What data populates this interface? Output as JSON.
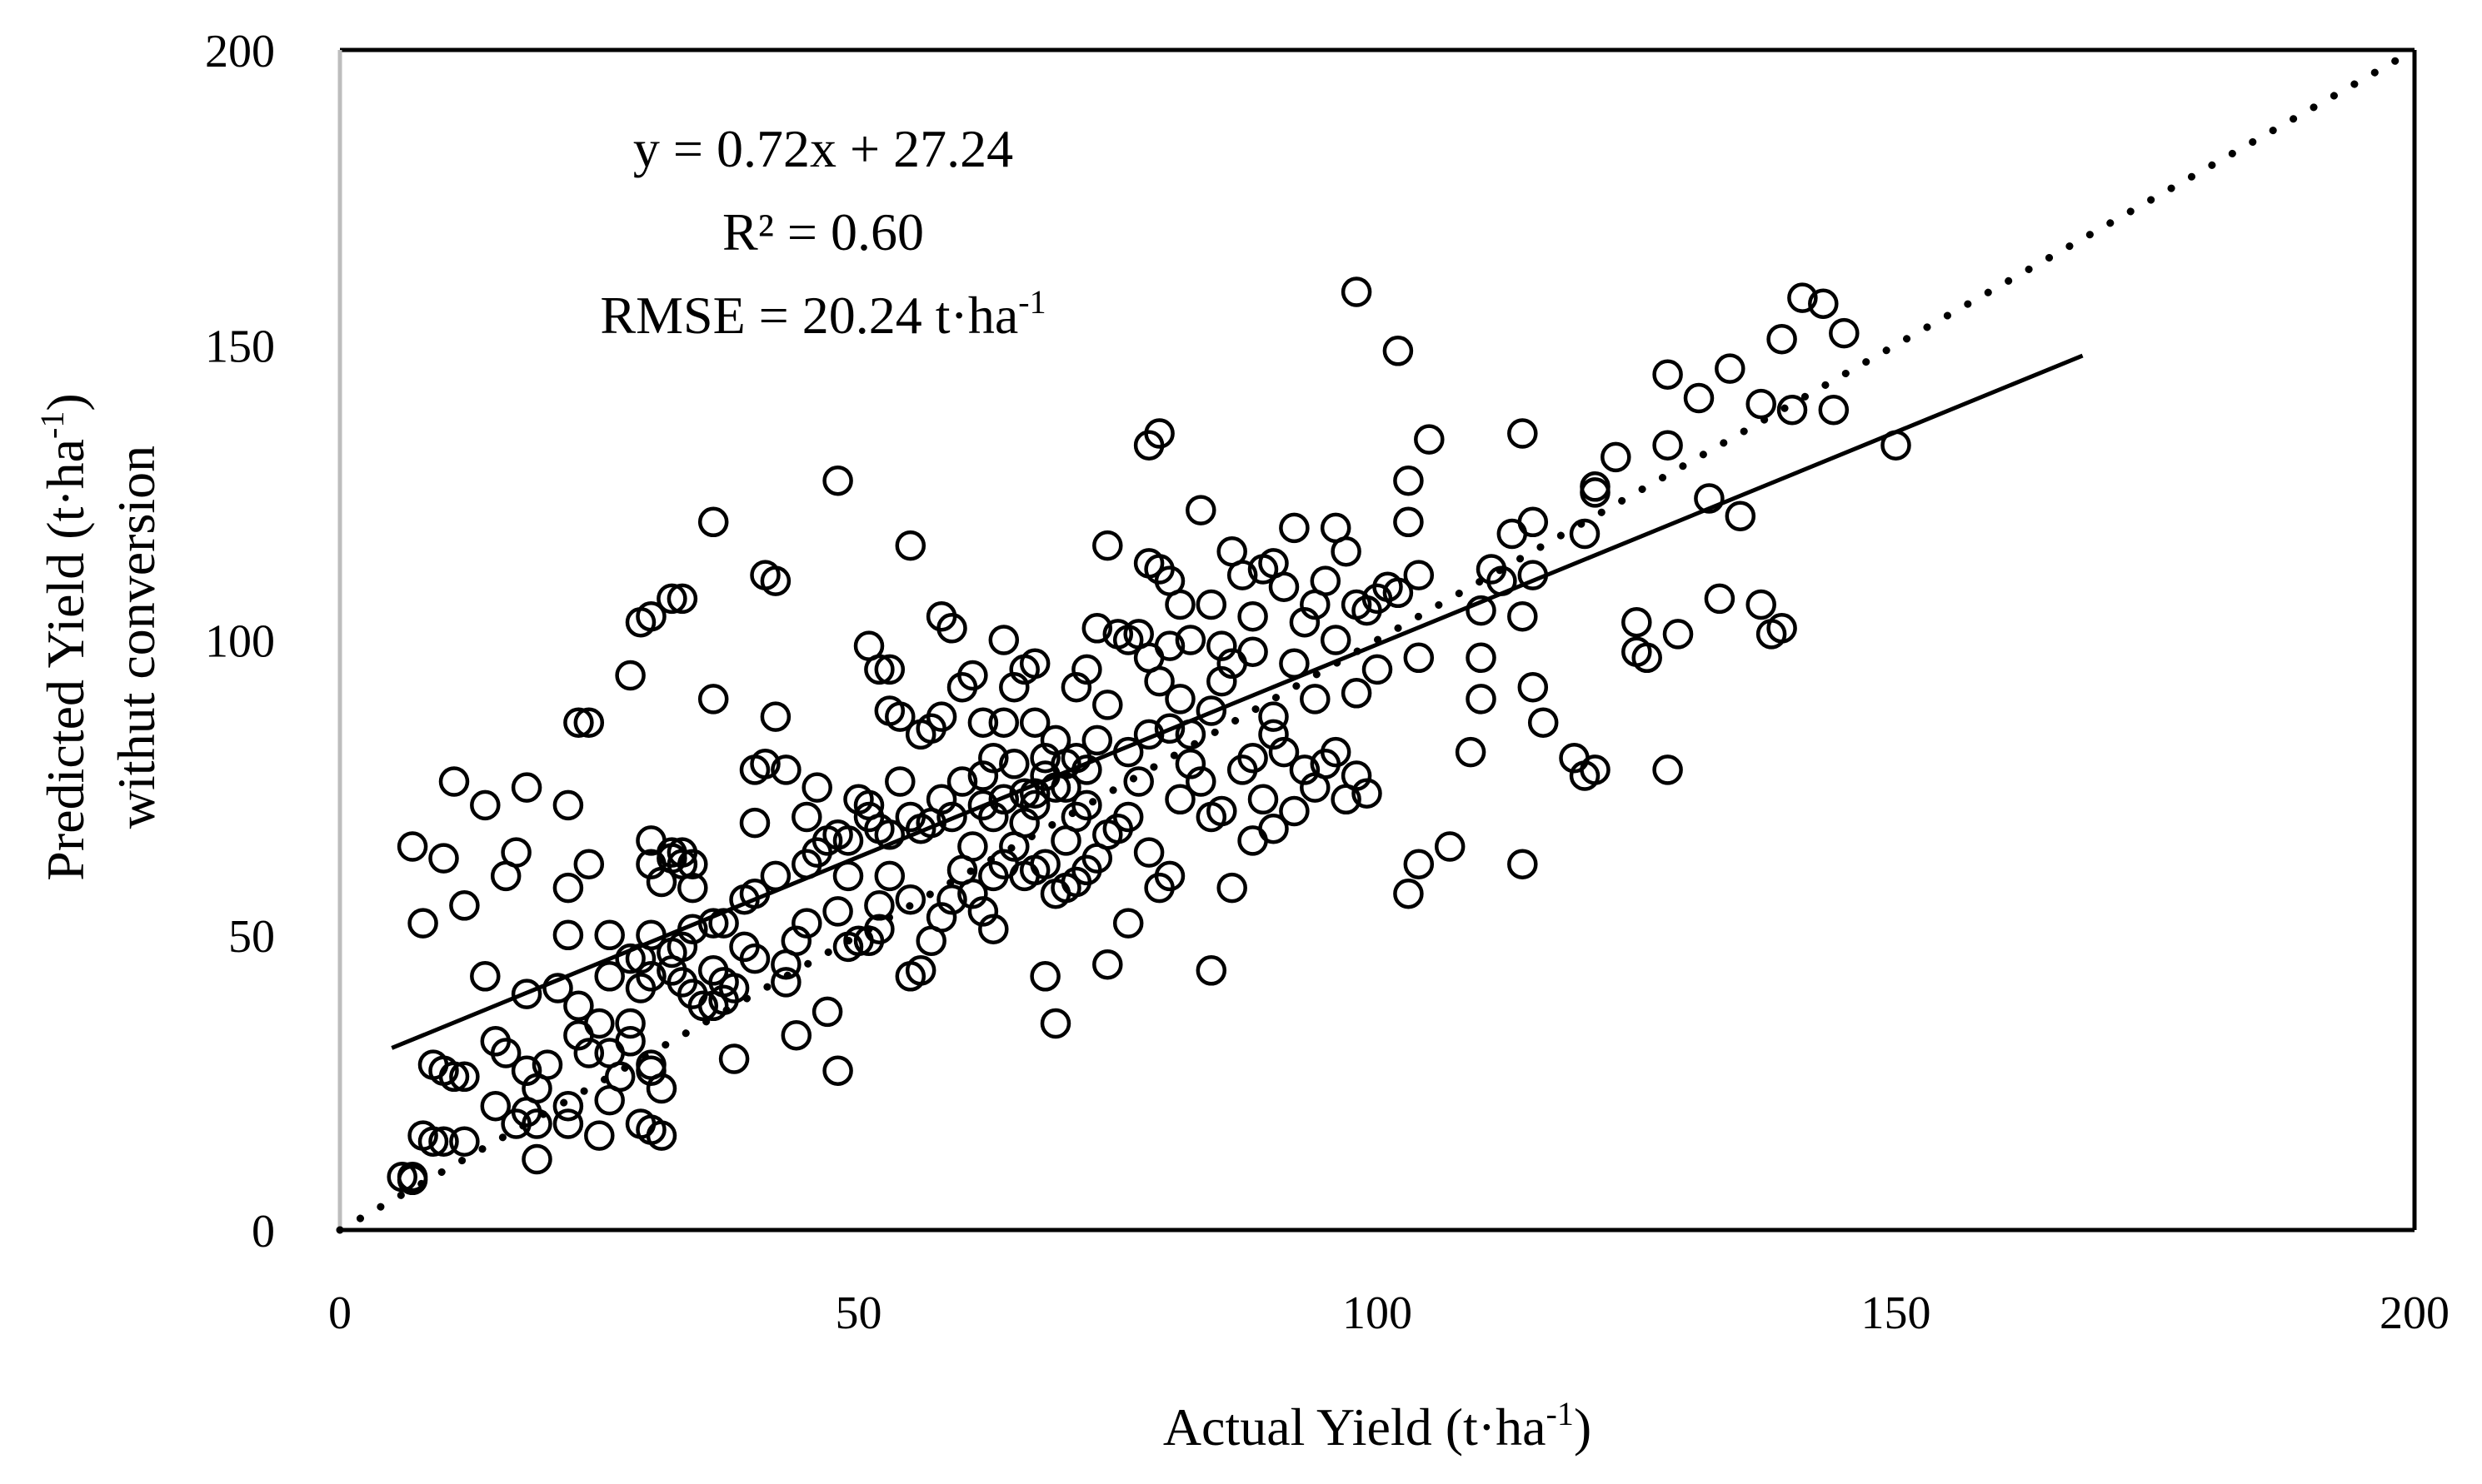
{
  "chart_data": {
    "type": "scatter",
    "xlabel": "Actual Yield (t·ha",
    "xlabel_sup": "-1",
    "xlabel_end": ")",
    "ylabel_line1": "Predicted Yield (t·ha",
    "ylabel_line1_sup": "-1",
    "ylabel_line1_end": ")",
    "ylabel_line2": "withut conversion",
    "xlim": [
      0,
      200
    ],
    "ylim": [
      0,
      200
    ],
    "xticks": [
      "0",
      "50",
      "100",
      "150",
      "200"
    ],
    "yticks": [
      "0",
      "50",
      "100",
      "150",
      "200"
    ],
    "grid": false,
    "annotations": {
      "equation": "y = 0.72x + 27.24",
      "r2": "R² = 0.60",
      "rmse": "RMSE = 20.24 t·ha",
      "rmse_sup": "-1"
    },
    "regression": {
      "slope": 0.72,
      "intercept": 27.24,
      "x_range": [
        5,
        168
      ]
    },
    "one_to_one": {
      "x_range": [
        0,
        200
      ]
    },
    "points": [
      [
        6,
        9
      ],
      [
        7,
        9
      ],
      [
        7,
        8.5
      ],
      [
        8,
        16
      ],
      [
        9,
        15
      ],
      [
        10,
        15
      ],
      [
        12,
        15
      ],
      [
        9,
        28
      ],
      [
        10,
        27
      ],
      [
        11,
        26
      ],
      [
        12,
        26
      ],
      [
        15,
        21
      ],
      [
        18,
        20
      ],
      [
        17,
        18
      ],
      [
        19,
        18
      ],
      [
        19,
        12
      ],
      [
        19,
        24
      ],
      [
        20,
        28
      ],
      [
        18,
        27
      ],
      [
        16,
        30
      ],
      [
        15,
        32
      ],
      [
        12,
        55
      ],
      [
        8,
        52
      ],
      [
        7,
        65
      ],
      [
        10,
        63
      ],
      [
        11,
        76
      ],
      [
        14,
        43
      ],
      [
        14,
        72
      ],
      [
        16,
        60
      ],
      [
        17,
        64
      ],
      [
        18,
        40
      ],
      [
        18,
        75
      ],
      [
        21,
        41
      ],
      [
        22,
        50
      ],
      [
        22,
        58
      ],
      [
        22,
        72
      ],
      [
        23,
        86
      ],
      [
        24,
        86
      ],
      [
        24,
        62
      ],
      [
        23,
        38
      ],
      [
        23,
        33
      ],
      [
        24,
        30
      ],
      [
        25,
        35
      ],
      [
        26,
        30
      ],
      [
        26,
        22
      ],
      [
        27,
        26
      ],
      [
        28,
        35
      ],
      [
        28,
        32
      ],
      [
        28,
        46
      ],
      [
        29,
        46
      ],
      [
        29,
        41
      ],
      [
        30,
        43
      ],
      [
        30,
        27
      ],
      [
        31,
        24
      ],
      [
        29,
        18
      ],
      [
        30,
        17
      ],
      [
        30,
        28
      ],
      [
        31,
        16
      ],
      [
        25,
        16
      ],
      [
        22,
        18
      ],
      [
        22,
        21
      ],
      [
        26,
        43
      ],
      [
        26,
        50
      ],
      [
        30,
        50
      ],
      [
        30,
        62
      ],
      [
        30,
        66
      ],
      [
        31,
        59
      ],
      [
        32,
        63
      ],
      [
        32,
        64
      ],
      [
        33,
        64
      ],
      [
        33,
        62
      ],
      [
        34,
        62
      ],
      [
        34,
        58
      ],
      [
        34,
        51
      ],
      [
        33,
        48
      ],
      [
        32,
        47
      ],
      [
        32,
        44
      ],
      [
        33,
        42
      ],
      [
        34,
        40
      ],
      [
        35,
        38
      ],
      [
        36,
        38
      ],
      [
        36,
        44
      ],
      [
        36,
        52
      ],
      [
        37,
        52
      ],
      [
        37,
        42
      ],
      [
        38,
        41
      ],
      [
        39,
        48
      ],
      [
        40,
        46
      ],
      [
        39,
        56
      ],
      [
        40,
        57
      ],
      [
        40,
        69
      ],
      [
        40,
        78
      ],
      [
        41,
        79
      ],
      [
        42,
        60
      ],
      [
        43,
        45
      ],
      [
        43,
        42
      ],
      [
        44,
        49
      ],
      [
        45,
        52
      ],
      [
        45,
        62
      ],
      [
        46,
        64
      ],
      [
        45,
        70
      ],
      [
        46,
        75
      ],
      [
        43,
        78
      ],
      [
        47,
        66
      ],
      [
        48,
        67
      ],
      [
        49,
        66
      ],
      [
        50,
        73
      ],
      [
        51,
        72
      ],
      [
        49,
        60
      ],
      [
        48,
        54
      ],
      [
        49,
        48
      ],
      [
        50,
        49
      ],
      [
        51,
        49
      ],
      [
        52,
        51
      ],
      [
        52,
        55
      ],
      [
        53,
        60
      ],
      [
        55,
        56
      ],
      [
        55,
        43
      ],
      [
        56,
        44
      ],
      [
        57,
        49
      ],
      [
        58,
        53
      ],
      [
        59,
        56
      ],
      [
        60,
        61
      ],
      [
        61,
        57
      ],
      [
        62,
        54
      ],
      [
        63,
        51
      ],
      [
        63,
        60
      ],
      [
        64,
        62
      ],
      [
        65,
        65
      ],
      [
        66,
        60
      ],
      [
        67,
        61
      ],
      [
        68,
        62
      ],
      [
        69,
        57
      ],
      [
        70,
        58
      ],
      [
        71,
        59
      ],
      [
        72,
        61
      ],
      [
        73,
        63
      ],
      [
        74,
        67
      ],
      [
        75,
        68
      ],
      [
        76,
        70
      ],
      [
        28,
        94
      ],
      [
        29,
        103
      ],
      [
        30,
        104
      ],
      [
        32,
        107
      ],
      [
        33,
        107
      ],
      [
        36,
        90
      ],
      [
        36,
        120
      ],
      [
        41,
        111
      ],
      [
        42,
        110
      ],
      [
        42,
        87
      ],
      [
        48,
        127
      ],
      [
        51,
        99
      ],
      [
        52,
        95
      ],
      [
        53,
        95
      ],
      [
        53,
        88
      ],
      [
        54,
        87
      ],
      [
        55,
        116
      ],
      [
        56,
        84
      ],
      [
        57,
        85
      ],
      [
        58,
        87
      ],
      [
        58,
        104
      ],
      [
        59,
        102
      ],
      [
        60,
        92
      ],
      [
        61,
        94
      ],
      [
        62,
        86
      ],
      [
        62,
        77
      ],
      [
        63,
        80
      ],
      [
        64,
        86
      ],
      [
        64,
        100
      ],
      [
        65,
        92
      ],
      [
        66,
        95
      ],
      [
        67,
        96
      ],
      [
        67,
        86
      ],
      [
        68,
        80
      ],
      [
        69,
        75
      ],
      [
        70,
        79
      ],
      [
        71,
        92
      ],
      [
        72,
        95
      ],
      [
        73,
        102
      ],
      [
        74,
        116
      ],
      [
        75,
        101
      ],
      [
        76,
        100
      ],
      [
        77,
        101
      ],
      [
        78,
        97
      ],
      [
        79,
        93
      ],
      [
        80,
        99
      ],
      [
        78,
        113
      ],
      [
        79,
        112
      ],
      [
        80,
        110
      ],
      [
        81,
        106
      ],
      [
        78,
        133
      ],
      [
        79,
        135
      ],
      [
        82,
        100
      ],
      [
        83,
        122
      ],
      [
        84,
        106
      ],
      [
        85,
        99
      ],
      [
        86,
        115
      ],
      [
        87,
        111
      ],
      [
        88,
        104
      ],
      [
        88,
        98
      ],
      [
        89,
        112
      ],
      [
        90,
        113
      ],
      [
        91,
        109
      ],
      [
        92,
        119
      ],
      [
        93,
        103
      ],
      [
        94,
        106
      ],
      [
        95,
        110
      ],
      [
        96,
        119
      ],
      [
        97,
        115
      ],
      [
        98,
        106
      ],
      [
        99,
        105
      ],
      [
        100,
        107
      ],
      [
        101,
        109
      ],
      [
        102,
        108
      ],
      [
        103,
        120
      ],
      [
        98,
        159
      ],
      [
        102,
        149
      ],
      [
        103,
        127
      ],
      [
        104,
        111
      ],
      [
        105,
        134
      ],
      [
        104,
        97
      ],
      [
        107,
        65
      ],
      [
        104,
        62
      ],
      [
        103,
        57
      ],
      [
        110,
        105
      ],
      [
        111,
        112
      ],
      [
        112,
        110
      ],
      [
        113,
        118
      ],
      [
        114,
        104
      ],
      [
        114,
        135
      ],
      [
        115,
        120
      ],
      [
        115,
        111
      ],
      [
        115,
        92
      ],
      [
        116,
        86
      ],
      [
        119,
        80
      ],
      [
        120,
        77
      ],
      [
        121,
        78
      ],
      [
        120,
        118
      ],
      [
        121,
        125
      ],
      [
        121,
        126
      ],
      [
        123,
        131
      ],
      [
        125,
        98
      ],
      [
        125,
        103
      ],
      [
        126,
        97
      ],
      [
        128,
        78
      ],
      [
        129,
        101
      ],
      [
        128,
        145
      ],
      [
        128,
        133
      ],
      [
        131,
        141
      ],
      [
        132,
        124
      ],
      [
        133,
        107
      ],
      [
        134,
        146
      ],
      [
        135,
        121
      ],
      [
        137,
        106
      ],
      [
        137,
        140
      ],
      [
        138,
        101
      ],
      [
        139,
        102
      ],
      [
        139,
        151
      ],
      [
        140,
        139
      ],
      [
        141,
        158
      ],
      [
        143,
        157
      ],
      [
        144,
        139
      ],
      [
        145,
        152
      ],
      [
        150,
        133
      ],
      [
        114,
        62
      ],
      [
        110,
        90
      ],
      [
        109,
        81
      ],
      [
        110,
        97
      ],
      [
        99,
        74
      ],
      [
        98,
        77
      ],
      [
        97,
        73
      ],
      [
        96,
        81
      ],
      [
        95,
        79
      ],
      [
        94,
        75
      ],
      [
        93,
        78
      ],
      [
        92,
        71
      ],
      [
        91,
        81
      ],
      [
        90,
        84
      ],
      [
        90,
        68
      ],
      [
        89,
        73
      ],
      [
        88,
        66
      ],
      [
        87,
        78
      ],
      [
        86,
        58
      ],
      [
        85,
        71
      ],
      [
        84,
        44
      ],
      [
        84,
        70
      ],
      [
        83,
        76
      ],
      [
        82,
        79
      ],
      [
        81,
        73
      ],
      [
        80,
        60
      ],
      [
        79,
        58
      ],
      [
        78,
        64
      ],
      [
        77,
        76
      ],
      [
        76,
        52
      ],
      [
        74,
        45
      ],
      [
        72,
        72
      ],
      [
        71,
        70
      ],
      [
        70,
        66
      ],
      [
        69,
        35
      ],
      [
        68,
        43
      ],
      [
        67,
        72
      ],
      [
        66,
        74
      ],
      [
        65,
        79
      ],
      [
        64,
        73
      ],
      [
        63,
        70
      ],
      [
        62,
        72
      ],
      [
        61,
        65
      ],
      [
        60,
        76
      ],
      [
        59,
        70
      ],
      [
        58,
        73
      ],
      [
        57,
        69
      ],
      [
        56,
        68
      ],
      [
        55,
        70
      ],
      [
        54,
        76
      ],
      [
        53,
        67
      ],
      [
        52,
        68
      ],
      [
        51,
        70
      ],
      [
        47,
        37
      ],
      [
        48,
        27
      ],
      [
        44,
        33
      ],
      [
        38,
        29
      ],
      [
        37,
        39
      ],
      [
        100,
        95
      ],
      [
        98,
        91
      ],
      [
        96,
        100
      ],
      [
        94,
        90
      ],
      [
        92,
        96
      ],
      [
        90,
        87
      ],
      [
        88,
        80
      ],
      [
        86,
        96
      ],
      [
        85,
        93
      ],
      [
        84,
        88
      ],
      [
        82,
        84
      ],
      [
        81,
        90
      ],
      [
        80,
        85
      ],
      [
        78,
        84
      ],
      [
        76,
        81
      ],
      [
        74,
        89
      ],
      [
        73,
        83
      ],
      [
        72,
        78
      ],
      [
        71,
        80
      ],
      [
        70,
        75
      ],
      [
        69,
        83
      ],
      [
        68,
        77
      ],
      [
        67,
        74
      ],
      [
        66,
        69
      ]
    ]
  }
}
